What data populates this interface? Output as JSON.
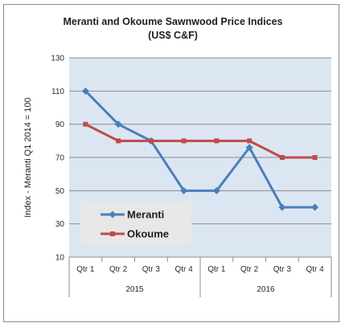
{
  "chart_data": {
    "type": "line",
    "title": "Meranti and Okoume Sawnwood Price Indices",
    "subtitle": "(US$ C&F)",
    "ylabel": "Index - Meranti Q1 2014 = 100",
    "xlabel": "",
    "ylim": [
      10,
      130
    ],
    "yticks": [
      10,
      30,
      50,
      70,
      90,
      110,
      130
    ],
    "grid": true,
    "legend_position": "lower-left",
    "categories": [
      "Qtr 1",
      "Qtr 2",
      "Qtr 3",
      "Qtr 4",
      "Qtr 1",
      "Qtr 2",
      "Qtr 3",
      "Qtr 4"
    ],
    "category_groups": [
      {
        "label": "2015",
        "span": 4
      },
      {
        "label": "2016",
        "span": 4
      }
    ],
    "series": [
      {
        "name": "Meranti",
        "color": "#4a7ebb",
        "marker": "diamond",
        "values": [
          110,
          90,
          80,
          50,
          50,
          76,
          40,
          40
        ]
      },
      {
        "name": "Okoume",
        "color": "#be4b48",
        "marker": "square",
        "values": [
          90,
          80,
          80,
          80,
          80,
          80,
          70,
          70
        ]
      }
    ]
  },
  "colors": {
    "plot_background": "#dce6f2",
    "gridline": "#8c8c8c",
    "legend_background": "#e7e7e7"
  }
}
